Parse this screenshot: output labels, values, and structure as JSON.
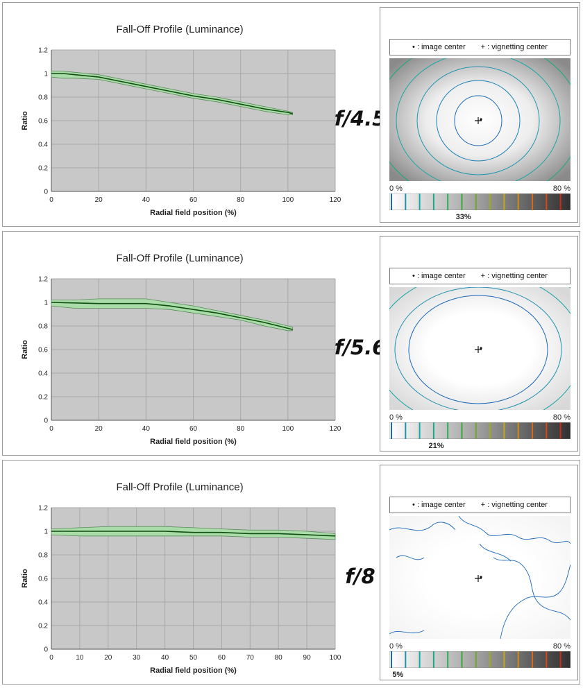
{
  "colors": {
    "plot_bg": "#c8c8c8",
    "grid": "#a8a8a8",
    "band": "#a9dca9",
    "line": "#0d4d0d",
    "contour_scale": [
      "#1a66b8",
      "#1e8fb0",
      "#1aa5a5",
      "#1aaa8a",
      "#2aaa5a",
      "#3aaa3a",
      "#6aaa2a",
      "#9aaa1a",
      "#c8a61a",
      "#d08c1a",
      "#d8681a",
      "#d84818",
      "#d02a18"
    ]
  },
  "panels": [
    {
      "title": "Fall-Off Profile (Luminance)",
      "fstop": "f/4.5",
      "legend_image_center": "• : image center",
      "legend_vignetting_center": "+ : vignetting center",
      "scale_min": "0 %",
      "scale_max": "80 %",
      "scale_value": "33%",
      "scale_fraction": 0.4125,
      "chart_data": {
        "type": "line",
        "title": "Fall-Off Profile (Luminance)",
        "xlabel": "Radial field position (%)",
        "ylabel": "Ratio",
        "xlim": [
          0,
          120
        ],
        "ylim": [
          0,
          1.2
        ],
        "xticks": [
          0,
          20,
          40,
          60,
          80,
          100,
          120
        ],
        "yticks": [
          0,
          0.2,
          0.4,
          0.6,
          0.8,
          1,
          1.2
        ],
        "grid": true,
        "x": [
          0,
          5,
          10,
          20,
          30,
          40,
          50,
          60,
          70,
          80,
          90,
          100,
          102
        ],
        "y": [
          1.0,
          1.0,
          0.99,
          0.97,
          0.93,
          0.89,
          0.85,
          0.81,
          0.78,
          0.74,
          0.7,
          0.67,
          0.66
        ],
        "band_upper": [
          1.02,
          1.02,
          1.01,
          0.99,
          0.95,
          0.91,
          0.87,
          0.83,
          0.8,
          0.76,
          0.72,
          0.68,
          0.67
        ],
        "band_lower": [
          0.97,
          0.96,
          0.96,
          0.95,
          0.91,
          0.87,
          0.83,
          0.79,
          0.76,
          0.72,
          0.68,
          0.65,
          0.65
        ]
      }
    },
    {
      "title": "Fall-Off Profile (Luminance)",
      "fstop": "f/5.6",
      "legend_image_center": "• : image center",
      "legend_vignetting_center": "+ : vignetting center",
      "scale_min": "0 %",
      "scale_max": "80 %",
      "scale_value": "21%",
      "scale_fraction": 0.2625,
      "chart_data": {
        "type": "line",
        "title": "Fall-Off Profile (Luminance)",
        "xlabel": "Radial field position (%)",
        "ylabel": "Ratio",
        "xlim": [
          0,
          120
        ],
        "ylim": [
          0,
          1.2
        ],
        "xticks": [
          0,
          20,
          40,
          60,
          80,
          100,
          120
        ],
        "yticks": [
          0,
          0.2,
          0.4,
          0.6,
          0.8,
          1,
          1.2
        ],
        "grid": true,
        "x": [
          0,
          10,
          20,
          30,
          40,
          50,
          60,
          70,
          80,
          90,
          100,
          102
        ],
        "y": [
          1.0,
          0.995,
          0.99,
          0.99,
          0.99,
          0.97,
          0.94,
          0.91,
          0.87,
          0.83,
          0.78,
          0.77
        ],
        "band_upper": [
          1.02,
          1.02,
          1.03,
          1.03,
          1.03,
          1.0,
          0.97,
          0.93,
          0.89,
          0.85,
          0.8,
          0.79
        ],
        "band_lower": [
          0.97,
          0.95,
          0.95,
          0.95,
          0.95,
          0.94,
          0.91,
          0.88,
          0.85,
          0.8,
          0.76,
          0.76
        ]
      }
    },
    {
      "title": "Fall-Off Profile (Luminance)",
      "fstop": "f/8",
      "legend_image_center": "• : image center",
      "legend_vignetting_center": "+ : vignetting center",
      "scale_min": "0 %",
      "scale_max": "80 %",
      "scale_value": "5%",
      "scale_fraction": 0.0625,
      "chart_data": {
        "type": "line",
        "title": "Fall-Off Profile (Luminance)",
        "xlabel": "Radial field position (%)",
        "ylabel": "Ratio",
        "xlim": [
          0,
          100
        ],
        "ylim": [
          0,
          1.2
        ],
        "xticks": [
          0,
          10,
          20,
          30,
          40,
          50,
          60,
          70,
          80,
          90,
          100
        ],
        "yticks": [
          0,
          0.2,
          0.4,
          0.6,
          0.8,
          1,
          1.2
        ],
        "grid": true,
        "x": [
          0,
          10,
          20,
          30,
          40,
          50,
          60,
          70,
          80,
          90,
          100
        ],
        "y": [
          1.0,
          1.0,
          1.0,
          1.0,
          1.0,
          0.99,
          0.99,
          0.98,
          0.98,
          0.97,
          0.96
        ],
        "band_upper": [
          1.02,
          1.03,
          1.04,
          1.04,
          1.04,
          1.03,
          1.02,
          1.01,
          1.01,
          1.0,
          0.98
        ],
        "band_lower": [
          0.97,
          0.96,
          0.96,
          0.96,
          0.96,
          0.96,
          0.96,
          0.95,
          0.95,
          0.94,
          0.93
        ]
      }
    }
  ]
}
